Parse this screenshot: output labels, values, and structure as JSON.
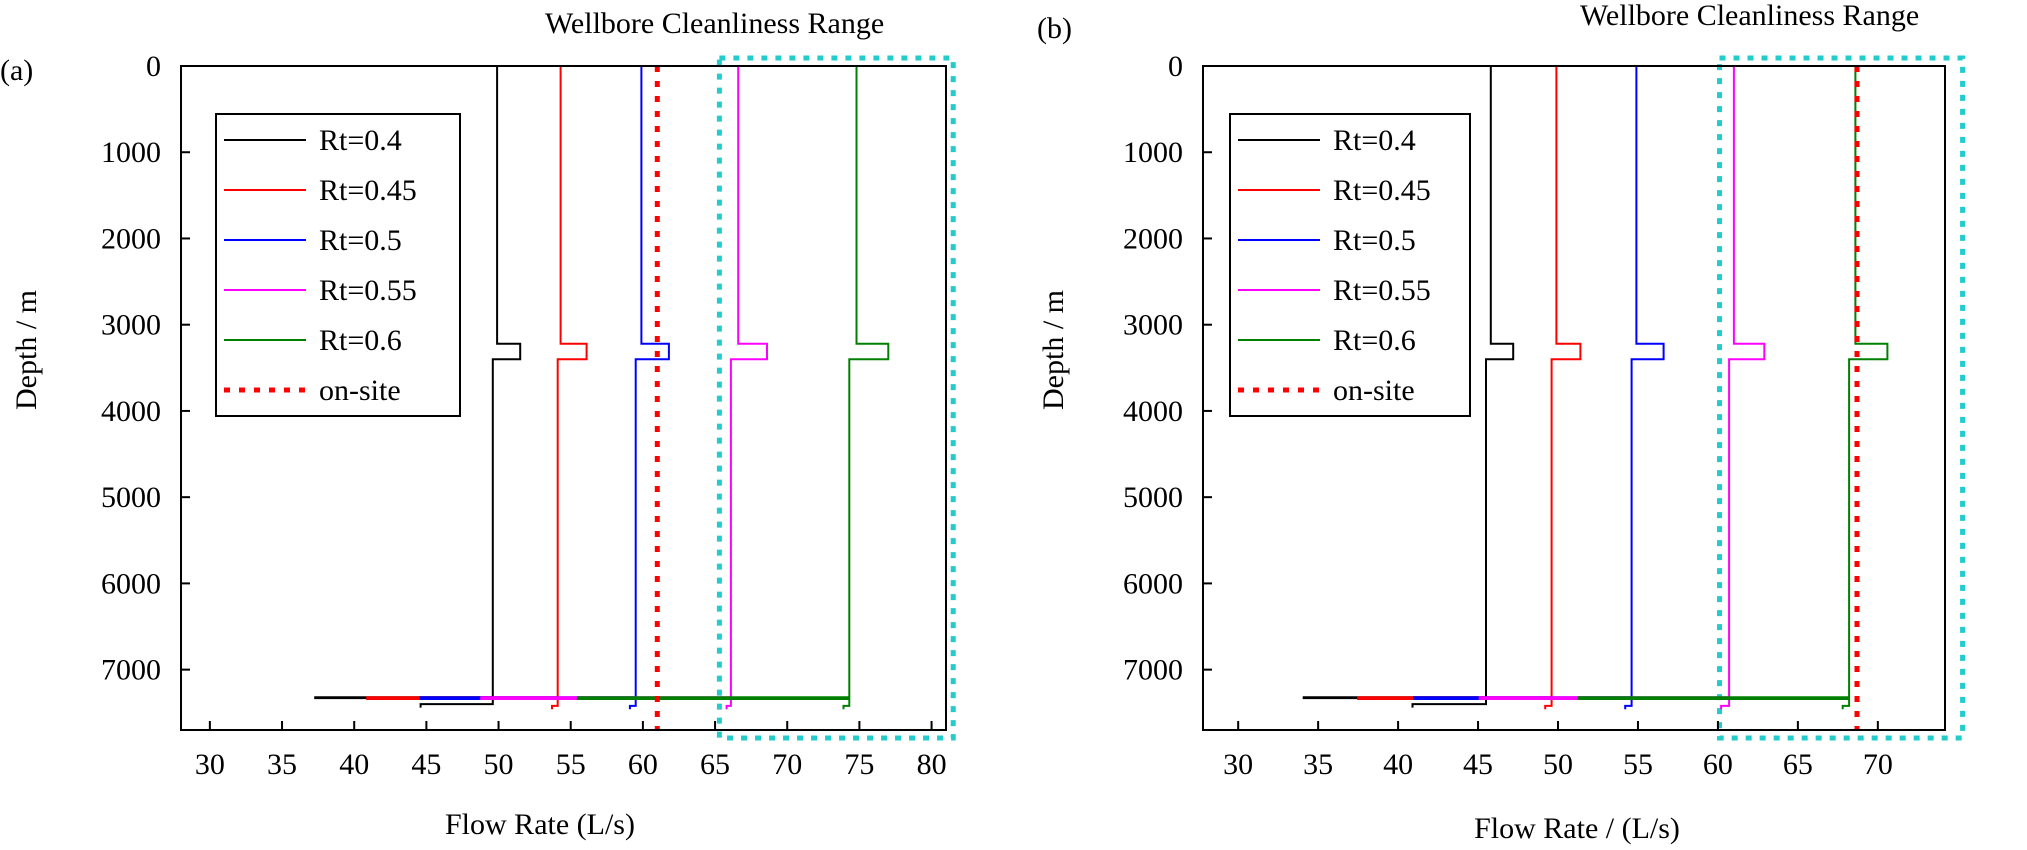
{
  "chart_data": [
    {
      "panel_label": "(a)",
      "type": "line",
      "title": "",
      "xlabel": "Flow Rate (L/s)",
      "ylabel": "Depth / m",
      "xlim": [
        28,
        81
      ],
      "ylim": [
        0,
        7700
      ],
      "y_inverted": true,
      "x_ticks": [
        30,
        35,
        40,
        45,
        50,
        55,
        60,
        65,
        70,
        75,
        80
      ],
      "y_ticks": [
        0,
        1000,
        2000,
        3000,
        4000,
        5000,
        6000,
        7000
      ],
      "legend_position": "upper-left",
      "highlight": {
        "label": "Wellbore Cleanliness Range",
        "x_range": [
          65.3,
          81.5
        ]
      },
      "series": [
        {
          "name": "Rt=0.4",
          "color": "#000000",
          "style": "solid",
          "x": [
            49.9,
            49.9,
            51.5,
            51.5,
            49.6,
            49.6,
            37.3,
            37.3,
            49.6,
            49.6,
            44.6,
            44.6
          ],
          "y": [
            0,
            3220,
            3220,
            3400,
            3400,
            7320,
            7320,
            7330,
            7330,
            7400,
            7400,
            7440
          ]
        },
        {
          "name": "Rt=0.45",
          "color": "#ff0000",
          "style": "solid",
          "x": [
            54.3,
            54.3,
            56.1,
            56.1,
            54.1,
            54.1,
            40.9,
            40.9,
            54.1,
            54.1,
            53.7,
            53.7
          ],
          "y": [
            0,
            3220,
            3220,
            3400,
            3400,
            7320,
            7320,
            7340,
            7340,
            7420,
            7420,
            7460
          ]
        },
        {
          "name": "Rt=0.5",
          "color": "#0000ff",
          "style": "solid",
          "x": [
            59.9,
            59.9,
            61.8,
            61.8,
            59.5,
            59.5,
            44.6,
            44.6,
            59.5,
            59.5,
            59.1,
            59.1
          ],
          "y": [
            0,
            3220,
            3220,
            3400,
            3400,
            7320,
            7320,
            7340,
            7340,
            7420,
            7420,
            7460
          ]
        },
        {
          "name": "Rt=0.55",
          "color": "#ff00ff",
          "style": "solid",
          "x": [
            66.6,
            66.6,
            68.6,
            68.6,
            66.1,
            66.1,
            48.8,
            48.8,
            66.1,
            66.1,
            65.8,
            65.8
          ],
          "y": [
            0,
            3220,
            3220,
            3400,
            3400,
            7320,
            7320,
            7340,
            7340,
            7420,
            7420,
            7460
          ]
        },
        {
          "name": "Rt=0.6",
          "color": "#008000",
          "style": "solid",
          "x": [
            74.8,
            74.8,
            77.0,
            77.0,
            74.3,
            74.3,
            55.5,
            55.5,
            74.3,
            74.3,
            73.9,
            73.9
          ],
          "y": [
            0,
            3220,
            3220,
            3400,
            3400,
            7320,
            7320,
            7340,
            7340,
            7420,
            7420,
            7460
          ]
        },
        {
          "name": "on-site",
          "color": "#ff0000",
          "style": "dotted",
          "x": [
            61.0,
            61.0
          ],
          "y": [
            0,
            7700
          ]
        }
      ]
    },
    {
      "panel_label": "(b)",
      "type": "line",
      "title": "",
      "xlabel": "Flow Rate / (L/s)",
      "ylabel": "Depth / m",
      "xlim": [
        27.8,
        74.2
      ],
      "ylim": [
        0,
        7700
      ],
      "y_inverted": true,
      "x_ticks": [
        30,
        35,
        40,
        45,
        50,
        55,
        60,
        65,
        70
      ],
      "y_ticks": [
        0,
        1000,
        2000,
        3000,
        4000,
        5000,
        6000,
        7000
      ],
      "legend_position": "upper-left",
      "highlight": {
        "label": "Wellbore Cleanliness Range",
        "x_range": [
          60.1,
          75.3
        ]
      },
      "series": [
        {
          "name": "Rt=0.4",
          "color": "#000000",
          "style": "solid",
          "x": [
            45.8,
            45.8,
            47.2,
            47.2,
            45.5,
            45.5,
            34.1,
            34.1,
            45.5,
            45.5,
            40.9,
            40.9
          ],
          "y": [
            0,
            3220,
            3220,
            3400,
            3400,
            7320,
            7320,
            7330,
            7330,
            7400,
            7400,
            7440
          ]
        },
        {
          "name": "Rt=0.45",
          "color": "#ff0000",
          "style": "solid",
          "x": [
            49.9,
            49.9,
            51.4,
            51.4,
            49.6,
            49.6,
            37.5,
            37.5,
            49.6,
            49.6,
            49.2,
            49.2
          ],
          "y": [
            0,
            3220,
            3220,
            3400,
            3400,
            7320,
            7320,
            7340,
            7340,
            7420,
            7420,
            7460
          ]
        },
        {
          "name": "Rt=0.5",
          "color": "#0000ff",
          "style": "solid",
          "x": [
            54.9,
            54.9,
            56.6,
            56.6,
            54.6,
            54.6,
            41.0,
            41.0,
            54.6,
            54.6,
            54.2,
            54.2
          ],
          "y": [
            0,
            3220,
            3220,
            3400,
            3400,
            7320,
            7320,
            7340,
            7340,
            7420,
            7420,
            7460
          ]
        },
        {
          "name": "Rt=0.55",
          "color": "#ff00ff",
          "style": "solid",
          "x": [
            61.0,
            61.0,
            62.9,
            62.9,
            60.7,
            60.7,
            45.1,
            45.1,
            60.7,
            60.7,
            60.2,
            60.2
          ],
          "y": [
            0,
            3220,
            3220,
            3400,
            3400,
            7320,
            7320,
            7340,
            7340,
            7420,
            7420,
            7460
          ]
        },
        {
          "name": "Rt=0.6",
          "color": "#008000",
          "style": "solid",
          "x": [
            68.6,
            68.6,
            70.6,
            70.6,
            68.2,
            68.2,
            51.3,
            51.3,
            68.2,
            68.2,
            67.8,
            67.8
          ],
          "y": [
            0,
            3220,
            3220,
            3400,
            3400,
            7320,
            7320,
            7340,
            7340,
            7420,
            7420,
            7460
          ]
        },
        {
          "name": "on-site",
          "color": "#ff0000",
          "style": "dotted",
          "x": [
            68.7,
            68.7
          ],
          "y": [
            0,
            7700
          ]
        }
      ]
    }
  ]
}
